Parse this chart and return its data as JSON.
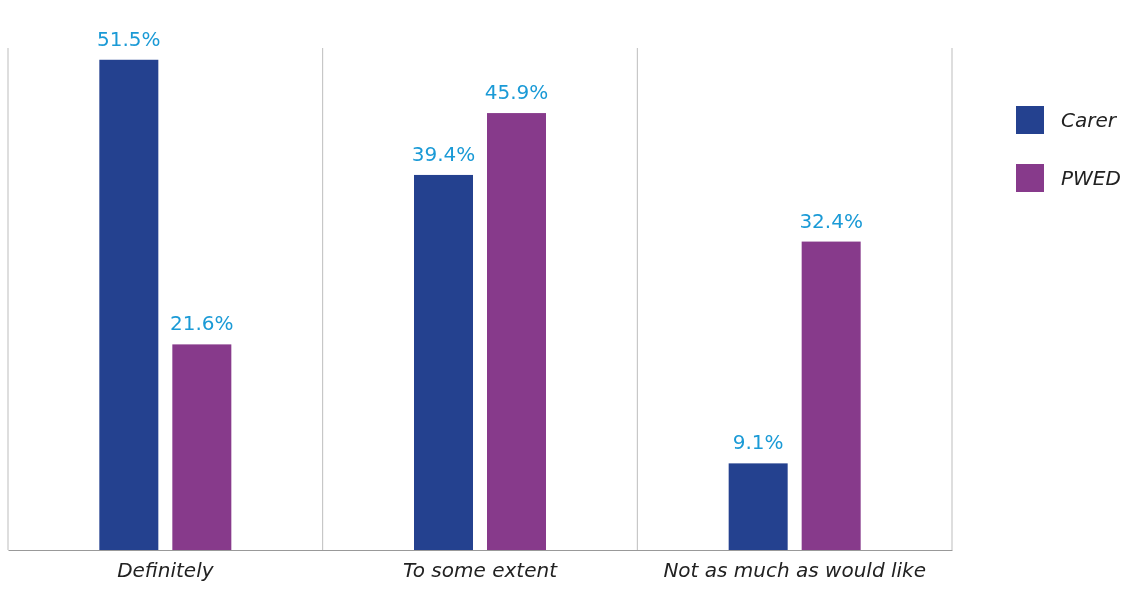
{
  "chart_data": {
    "type": "bar",
    "categories": [
      "Definitely",
      "To some extent",
      "Not as much as would like"
    ],
    "series": [
      {
        "name": "Carer",
        "color": "#24418f",
        "values": [
          51.5,
          39.4,
          9.1
        ],
        "value_labels": [
          "51.5%",
          "39.4%",
          "9.1%"
        ]
      },
      {
        "name": "PWED",
        "color": "#873a8b",
        "values": [
          21.6,
          45.9,
          32.4
        ],
        "value_labels": [
          "21.6%",
          "45.9%",
          "32.4%"
        ]
      }
    ],
    "grid": "x",
    "legend": "top right"
  }
}
